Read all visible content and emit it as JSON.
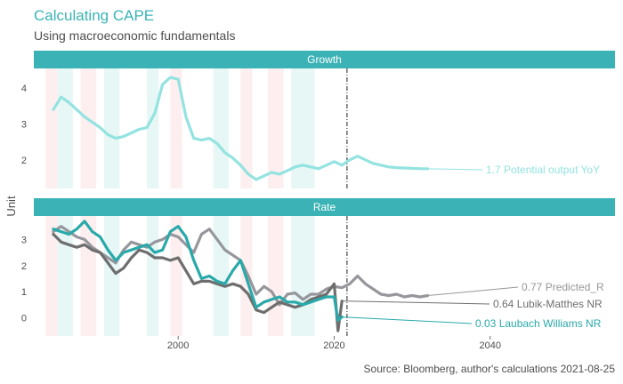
{
  "title": "Calculating CAPE",
  "subtitle": "Using macroeconomic fundamentals",
  "caption": "Source: Bloomberg, author's calculations 2021-08-25",
  "colors": {
    "accent": "#3bb3b6",
    "growth": "#93e3e0",
    "predicted": "#96979c",
    "lubik": "#6e6e6e",
    "laubach": "#2aa9aa",
    "band_teal": "#e6f7f6",
    "band_pink": "#fdeff0"
  },
  "chart_data": {
    "type": "line",
    "ylabel": "Unit",
    "xlabel": "",
    "x_ticks": [
      2000,
      2020,
      2040
    ],
    "x_range": [
      1981.5,
      2056
    ],
    "vline_x": 2021.65,
    "recession_bands": {
      "teal": [
        [
          1984.5,
          1986.5
        ],
        [
          1990.5,
          1992.5
        ],
        [
          1996,
          1997.5
        ],
        [
          2004.5,
          2006.5
        ],
        [
          2014.5,
          2017.5
        ]
      ],
      "pink": [
        [
          1983,
          1984.5
        ],
        [
          1987.5,
          1989.5
        ],
        [
          1999,
          2000.5
        ],
        [
          2008,
          2009.5
        ],
        [
          2011.5,
          2013.5
        ]
      ]
    },
    "panels": [
      {
        "id": "growth",
        "strip": "Growth",
        "ylim": [
          1.2,
          4.55
        ],
        "y_ticks": [
          2,
          3,
          4
        ],
        "series": [
          {
            "name": "Potential output YoY",
            "label": "1.7 Potential output YoY",
            "color_key": "growth",
            "x": [
              1984,
              1985,
              1986,
              1987,
              1988,
              1989,
              1990,
              1991,
              1992,
              1993,
              1994,
              1995,
              1996,
              1997,
              1998,
              1999,
              2000,
              2001,
              2002,
              2003,
              2004,
              2005,
              2006,
              2007,
              2008,
              2009,
              2010,
              2011,
              2012,
              2013,
              2014,
              2015,
              2016,
              2017,
              2018,
              2019,
              2020,
              2021,
              2022,
              2023,
              2024,
              2025,
              2026,
              2027,
              2028,
              2029,
              2030,
              2031,
              2032
            ],
            "values": [
              3.4,
              3.75,
              3.6,
              3.4,
              3.2,
              3.05,
              2.9,
              2.7,
              2.6,
              2.65,
              2.75,
              2.85,
              2.9,
              3.3,
              4.1,
              4.3,
              4.25,
              3.2,
              2.6,
              2.55,
              2.6,
              2.45,
              2.2,
              2.05,
              1.85,
              1.6,
              1.45,
              1.55,
              1.65,
              1.6,
              1.7,
              1.8,
              1.85,
              1.8,
              1.75,
              1.85,
              1.95,
              1.85,
              2.0,
              2.1,
              2.0,
              1.9,
              1.85,
              1.8,
              1.78,
              1.77,
              1.76,
              1.75,
              1.75
            ],
            "label_value": 1.7
          }
        ]
      },
      {
        "id": "rate",
        "strip": "Rate",
        "ylim": [
          -0.7,
          3.9
        ],
        "y_ticks": [
          0,
          1,
          2,
          3
        ],
        "series": [
          {
            "name": "Predicted_R",
            "label": "0.77 Predicted_R",
            "color_key": "predicted",
            "x": [
              1984,
              1985,
              1986,
              1987,
              1988,
              1989,
              1990,
              1991,
              1992,
              1993,
              1994,
              1995,
              1996,
              1997,
              1998,
              1999,
              2000,
              2001,
              2002,
              2003,
              2004,
              2005,
              2006,
              2007,
              2008,
              2009,
              2010,
              2011,
              2012,
              2013,
              2014,
              2015,
              2016,
              2017,
              2018,
              2019,
              2020,
              2021,
              2022,
              2023,
              2024,
              2025,
              2026,
              2027,
              2028,
              2029,
              2030,
              2031,
              2032
            ],
            "values": [
              3.3,
              3.5,
              3.3,
              3.1,
              3.0,
              2.7,
              2.5,
              2.3,
              2.1,
              2.6,
              2.9,
              2.8,
              2.7,
              2.9,
              3.0,
              3.2,
              3.1,
              2.8,
              2.5,
              3.2,
              3.4,
              3.0,
              2.6,
              2.4,
              2.2,
              1.6,
              0.9,
              1.2,
              1.0,
              0.5,
              0.9,
              0.95,
              0.7,
              0.9,
              0.9,
              1.1,
              1.2,
              1.15,
              1.3,
              1.6,
              1.3,
              1.1,
              0.9,
              0.85,
              0.9,
              0.8,
              0.85,
              0.8,
              0.85
            ],
            "label_value": 0.77
          },
          {
            "name": "Lubik-Matthes NR",
            "label": "0.64 Lubik-Matthes NR",
            "color_key": "lubik",
            "x": [
              1984,
              1985,
              1986,
              1987,
              1988,
              1989,
              1990,
              1991,
              1992,
              1993,
              1994,
              1995,
              1996,
              1997,
              1998,
              1999,
              2000,
              2001,
              2002,
              2003,
              2004,
              2005,
              2006,
              2007,
              2008,
              2009,
              2010,
              2011,
              2012,
              2013,
              2014,
              2015,
              2016,
              2017,
              2018,
              2019,
              2020,
              2020.5,
              2021
            ],
            "values": [
              3.2,
              2.9,
              2.8,
              2.7,
              2.8,
              2.6,
              2.5,
              2.1,
              1.7,
              1.9,
              2.3,
              2.6,
              2.5,
              2.3,
              2.3,
              2.2,
              2.3,
              1.8,
              1.3,
              1.4,
              1.4,
              1.3,
              1.2,
              1.3,
              1.2,
              0.9,
              0.3,
              0.2,
              0.4,
              0.6,
              0.5,
              0.4,
              0.5,
              0.7,
              0.8,
              0.9,
              1.3,
              -0.5,
              0.64
            ],
            "label_value": 0.64
          },
          {
            "name": "Laubach Williams NR",
            "label": "0.03 Laubach Williams NR",
            "color_key": "laubach",
            "x": [
              1984,
              1985,
              1986,
              1987,
              1988,
              1989,
              1990,
              1991,
              1992,
              1993,
              1994,
              1995,
              1996,
              1997,
              1998,
              1999,
              2000,
              2001,
              2002,
              2003,
              2004,
              2005,
              2006,
              2007,
              2008,
              2009,
              2010,
              2011,
              2012,
              2013,
              2014,
              2015,
              2016,
              2017,
              2018,
              2019,
              2020,
              2020.5,
              2021
            ],
            "values": [
              3.4,
              3.3,
              3.2,
              3.4,
              3.7,
              3.3,
              3.1,
              2.6,
              2.2,
              2.5,
              2.6,
              2.7,
              2.8,
              2.5,
              2.6,
              3.3,
              3.5,
              3.1,
              2.2,
              1.5,
              1.6,
              1.4,
              1.3,
              1.8,
              2.2,
              1.3,
              0.4,
              0.6,
              0.7,
              0.8,
              0.6,
              0.6,
              0.5,
              0.6,
              0.7,
              0.8,
              0.8,
              -0.1,
              0.03
            ],
            "label_value": 0.03
          }
        ]
      }
    ]
  }
}
